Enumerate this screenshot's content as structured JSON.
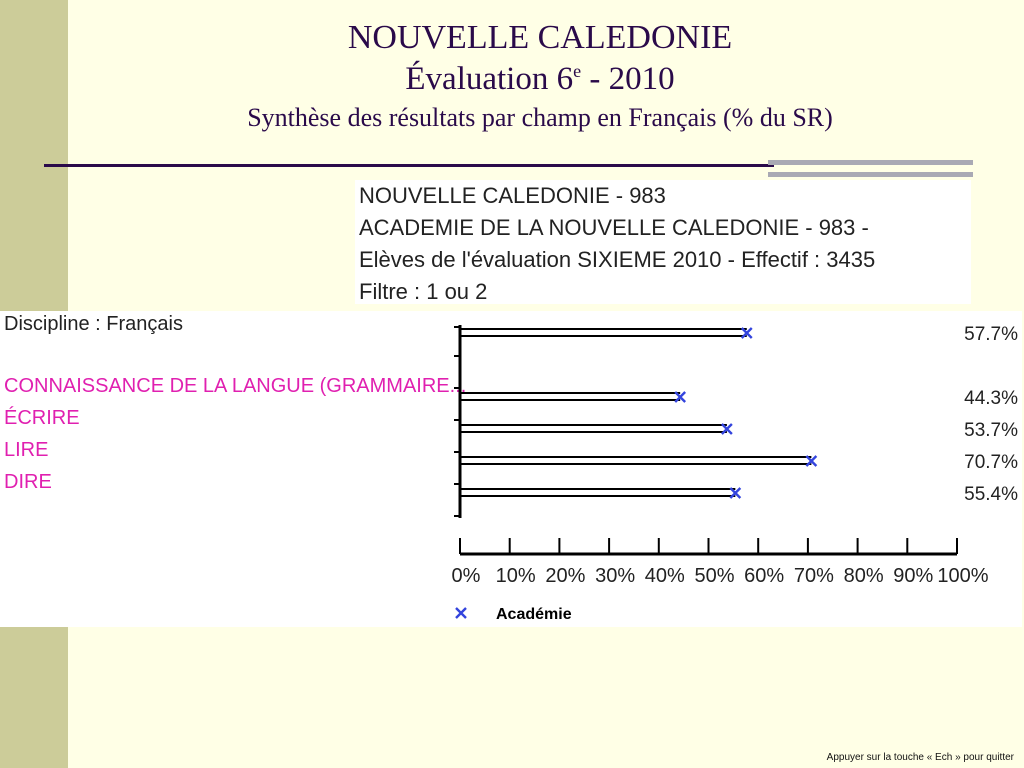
{
  "title": {
    "line1": "NOUVELLE CALEDONIE",
    "line2_main": "Évaluation 6",
    "line2_sup": "e",
    "line2_end": " - 2010",
    "line3": "Synthèse des résultats par champ en Français (% du SR)"
  },
  "info": {
    "line1": "NOUVELLE CALEDONIE - 983",
    "line2": "ACADEMIE DE LA NOUVELLE CALEDONIE -  983 -",
    "line3": " Elèves de l'évaluation SIXIEME 2010 - Effectif : 3435",
    "line4": "Filtre : 1 ou 2"
  },
  "chart_data": {
    "type": "bar",
    "discipline": "Discipline : Français",
    "categories": [
      "",
      "CONNAISSANCE DE LA LANGUE (GRAMMAIRE...",
      "ÉCRIRE",
      "LIRE",
      "DIRE"
    ],
    "values": [
      57.7,
      44.3,
      53.7,
      70.7,
      55.4
    ],
    "value_labels": [
      "57.7%",
      "44.3%",
      "53.7%",
      "70.7%",
      "55.4%"
    ],
    "xlim": [
      0,
      100
    ],
    "x_ticks": [
      "0%",
      "10%",
      "20%",
      "30%",
      "40%",
      "50%",
      "60%",
      "70%",
      "80%",
      "90%",
      "100%"
    ],
    "legend": [
      "Académie"
    ],
    "colors": {
      "marker": "#3344dd",
      "category": "#e020b0",
      "bar": "#000000"
    }
  },
  "footer": "Appuyer sur la touche « Ech » pour quitter"
}
